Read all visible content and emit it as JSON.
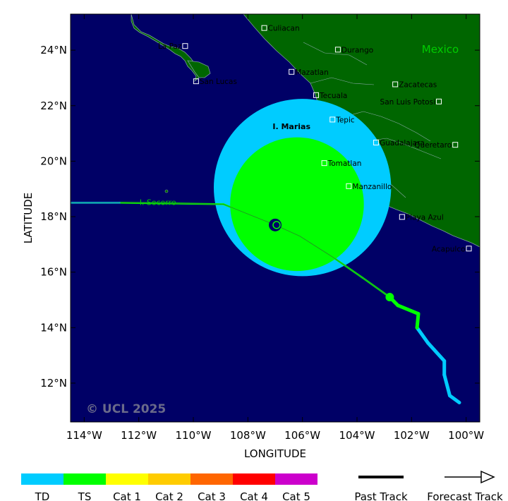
{
  "map": {
    "ocean_color": "#000066",
    "land_color": "#006600",
    "country_label": "Mexico",
    "country_label_color": "#00cc00",
    "copyright": "© UCL 2025",
    "xlabel": "LONGITUDE",
    "ylabel": "LATITUDE",
    "lon_range": [
      -114.5,
      -99.5
    ],
    "lat_range": [
      10.6,
      25.3
    ],
    "lon_ticks": [
      {
        "value": -114,
        "label": "114°W"
      },
      {
        "value": -112,
        "label": "112°W"
      },
      {
        "value": -110,
        "label": "110°W"
      },
      {
        "value": -108,
        "label": "108°W"
      },
      {
        "value": -106,
        "label": "106°W"
      },
      {
        "value": -104,
        "label": "104°W"
      },
      {
        "value": -102,
        "label": "102°W"
      },
      {
        "value": -100,
        "label": "100°W"
      }
    ],
    "lat_ticks": [
      {
        "value": 24,
        "label": "24°N"
      },
      {
        "value": 22,
        "label": "22°N"
      },
      {
        "value": 20,
        "label": "20°N"
      },
      {
        "value": 18,
        "label": "18°N"
      },
      {
        "value": 16,
        "label": "16°N"
      },
      {
        "value": 14,
        "label": "14°N"
      },
      {
        "value": 12,
        "label": "12°N"
      }
    ],
    "cities": [
      {
        "name": "Culiacan",
        "lon": -107.4,
        "lat": 24.8
      },
      {
        "name": "La Paz",
        "lon": -110.3,
        "lat": 24.15
      },
      {
        "name": "Durango",
        "lon": -104.7,
        "lat": 24.02
      },
      {
        "name": "Mazatlan",
        "lon": -106.4,
        "lat": 23.22
      },
      {
        "name": "San Lucas",
        "lon": -109.9,
        "lat": 22.88
      },
      {
        "name": "Zacatecas",
        "lon": -102.6,
        "lat": 22.77
      },
      {
        "name": "Tecuala",
        "lon": -105.5,
        "lat": 22.38
      },
      {
        "name": "San Luis Potosi",
        "lon": -101.0,
        "lat": 22.15
      },
      {
        "name": "Tepic",
        "lon": -104.9,
        "lat": 21.5
      },
      {
        "name": "Guadalajara",
        "lon": -103.3,
        "lat": 20.67
      },
      {
        "name": "Queretaro",
        "lon": -100.4,
        "lat": 20.59
      },
      {
        "name": "Tomatlan",
        "lon": -105.2,
        "lat": 19.93
      },
      {
        "name": "Manzanillo",
        "lon": -104.3,
        "lat": 19.1
      },
      {
        "name": "Playa Azul",
        "lon": -102.35,
        "lat": 17.99
      },
      {
        "name": "Acapulco",
        "lon": -99.9,
        "lat": 16.85
      }
    ],
    "island_labels": [
      {
        "name": "I. Marias",
        "lon": -106.4,
        "lat": 21.15,
        "color": "#000000",
        "bold": true
      },
      {
        "name": "I. Socorro",
        "lon": -111.3,
        "lat": 18.42,
        "color": "#00cc00",
        "bold": false
      }
    ]
  },
  "storm": {
    "current_position": {
      "lon": -107.0,
      "lat": 17.7
    },
    "wind_fields": [
      {
        "category": "TD",
        "center_lon": -106.0,
        "center_lat": 19.05,
        "radius_deg": 3.25
      },
      {
        "category": "TS",
        "center_lon": -106.2,
        "center_lat": 18.45,
        "radius_deg": 2.45
      }
    ],
    "past_track": [
      {
        "lon": -100.25,
        "lat": 11.3,
        "category": "TD"
      },
      {
        "lon": -100.6,
        "lat": 11.55,
        "category": "TD"
      },
      {
        "lon": -100.8,
        "lat": 12.3,
        "category": "TD"
      },
      {
        "lon": -100.8,
        "lat": 12.8,
        "category": "TD"
      },
      {
        "lon": -101.4,
        "lat": 13.45,
        "category": "TD"
      },
      {
        "lon": -101.8,
        "lat": 14.0,
        "category": "TD"
      },
      {
        "lon": -101.75,
        "lat": 14.5,
        "category": "TS"
      },
      {
        "lon": -102.5,
        "lat": 14.8,
        "category": "TS"
      },
      {
        "lon": -102.8,
        "lat": 15.1,
        "category": "TS"
      }
    ],
    "forecast_track": [
      {
        "lon": -102.8,
        "lat": 15.1,
        "category": "TS"
      },
      {
        "lon": -103.8,
        "lat": 15.8,
        "category": "TS"
      },
      {
        "lon": -104.9,
        "lat": 16.55,
        "category": "TS"
      },
      {
        "lon": -106.1,
        "lat": 17.3,
        "category": "TS"
      },
      {
        "lon": -107.0,
        "lat": 17.7,
        "category": "TS"
      },
      {
        "lon": -108.9,
        "lat": 18.45,
        "category": "TS"
      },
      {
        "lon": -112.7,
        "lat": 18.5,
        "category": "TS"
      },
      {
        "lon": -114.5,
        "lat": 18.5,
        "category": "TD"
      }
    ]
  },
  "legend": {
    "categories": [
      {
        "label": "TD",
        "color": "#00ccff"
      },
      {
        "label": "TS",
        "color": "#00ff00"
      },
      {
        "label": "Cat 1",
        "color": "#ffff00"
      },
      {
        "label": "Cat 2",
        "color": "#ffcc00"
      },
      {
        "label": "Cat 3",
        "color": "#ff6600"
      },
      {
        "label": "Cat 4",
        "color": "#ff0000"
      },
      {
        "label": "Cat 5",
        "color": "#cc00cc"
      }
    ],
    "past_track_label": "Past Track",
    "forecast_track_label": "Forecast Track"
  }
}
